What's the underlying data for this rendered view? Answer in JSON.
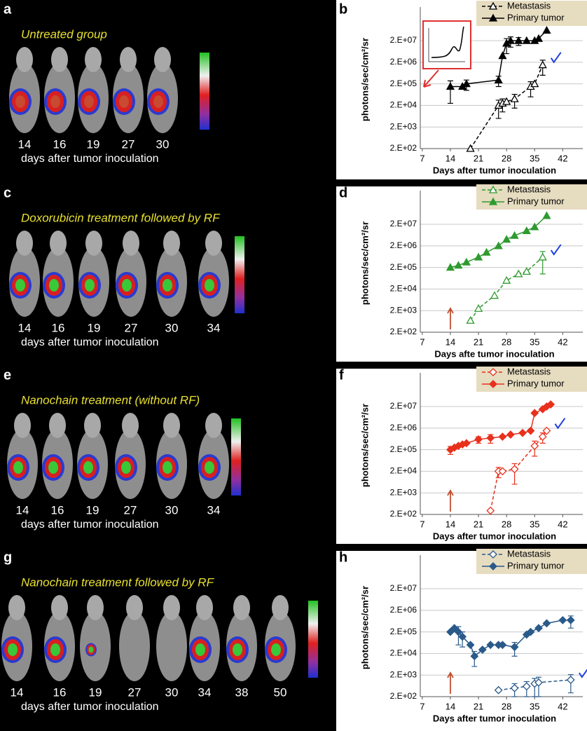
{
  "image_panels": [
    {
      "label": "a",
      "title": "Untreated group",
      "days": [
        14,
        16,
        19,
        27,
        30
      ],
      "caption": "days after tumor inoculation"
    },
    {
      "label": "c",
      "title": "Doxorubicin treatment followed by RF",
      "days": [
        14,
        16,
        19,
        27,
        30,
        34
      ],
      "caption": "days after tumor inoculation"
    },
    {
      "label": "e",
      "title": "Nanochain treatment (without RF)",
      "days": [
        14,
        16,
        19,
        27,
        30,
        34
      ],
      "caption": "days after tumor inoculation"
    },
    {
      "label": "g",
      "title": "Nanochain treatment followed by RF",
      "days": [
        14,
        16,
        19,
        27,
        30,
        34,
        38,
        50
      ],
      "caption": "days after tumor inoculation"
    }
  ],
  "chart_data": [
    {
      "type": "line",
      "label": "b",
      "xlabel": "Days after tumor inoculation",
      "ylabel": "photons/sec/cm²/sr",
      "xlim": [
        6.5,
        47
      ],
      "xticks": [
        7,
        14,
        21,
        28,
        35,
        42
      ],
      "log_y": true,
      "ylim": [
        200,
        500000000
      ],
      "yticks": [
        {
          "value": 200,
          "label": "2.E+02"
        },
        {
          "value": 2000,
          "label": "2.E+03"
        },
        {
          "value": 20000,
          "label": "2.E+04"
        },
        {
          "value": 200000,
          "label": "2.E+05"
        },
        {
          "value": 2000000,
          "label": "2.E+06"
        },
        {
          "value": 20000000,
          "label": "2.E+07"
        }
      ],
      "grid": true,
      "series": [
        {
          "name": "Metastasis",
          "color": "#000000",
          "marker": "triangle",
          "filled": false,
          "dashed": true,
          "x": [
            19,
            26,
            27,
            28,
            30,
            34,
            35,
            37
          ],
          "values": [
            200,
            20000,
            25000,
            30000,
            40000,
            150000,
            200000,
            1500000
          ],
          "errors": [
            null,
            15000,
            15000,
            null,
            25000,
            100000,
            null,
            1000000
          ]
        },
        {
          "name": "Primary tumor",
          "color": "#000000",
          "marker": "triangle",
          "filled": true,
          "dashed": false,
          "x": [
            14,
            17,
            18,
            26,
            27,
            28,
            29,
            31,
            33,
            35,
            36,
            38
          ],
          "values": [
            150000,
            150000,
            200000,
            300000,
            4000000,
            15000000,
            20000000,
            20000000,
            20000000,
            20000000,
            25000000,
            60000000
          ],
          "errors": [
            125000,
            null,
            100000,
            150000,
            null,
            10000000,
            10000000,
            8000000,
            null,
            null,
            null,
            null
          ]
        }
      ]
    },
    {
      "type": "line",
      "label": "d",
      "xlabel": "Days afte tumor inoculation",
      "ylabel": "photons/sec/cm²/sr",
      "xlim": [
        6.5,
        47
      ],
      "xticks": [
        7,
        14,
        21,
        28,
        35,
        42
      ],
      "log_y": true,
      "ylim": [
        200,
        500000000
      ],
      "yticks": [
        {
          "value": 200,
          "label": "2.E+02"
        },
        {
          "value": 2000,
          "label": "2.E+03"
        },
        {
          "value": 20000,
          "label": "2.E+04"
        },
        {
          "value": 200000,
          "label": "2.E+05"
        },
        {
          "value": 2000000,
          "label": "2.E+06"
        },
        {
          "value": 20000000,
          "label": "2.E+07"
        }
      ],
      "grid": true,
      "series": [
        {
          "name": "Metastasis",
          "color": "#2f9a2f",
          "marker": "triangle",
          "filled": false,
          "dashed": true,
          "x": [
            19,
            21,
            25,
            28,
            31,
            33,
            37
          ],
          "values": [
            700,
            2500,
            10000,
            50000,
            100000,
            130000,
            600000
          ],
          "errors": [
            null,
            null,
            null,
            null,
            null,
            null,
            500000
          ]
        },
        {
          "name": "Primary tumor",
          "color": "#2f9a2f",
          "marker": "triangle",
          "filled": true,
          "dashed": false,
          "x": [
            14,
            16,
            18,
            21,
            23,
            26,
            28,
            30,
            33,
            35,
            38
          ],
          "values": [
            200000,
            250000,
            350000,
            600000,
            1000000,
            2000000,
            4000000,
            6000000,
            10000000,
            15000000,
            50000000
          ]
        }
      ]
    },
    {
      "type": "line",
      "label": "f",
      "xlabel": "Days after tumor inoculation",
      "ylabel": "photons/sec/cm²/sr",
      "xlim": [
        6.5,
        47
      ],
      "xticks": [
        7,
        14,
        21,
        28,
        35,
        42
      ],
      "log_y": true,
      "ylim": [
        200,
        500000000
      ],
      "yticks": [
        {
          "value": 200,
          "label": "2.E+02"
        },
        {
          "value": 2000,
          "label": "2.E+03"
        },
        {
          "value": 20000,
          "label": "2.E+04"
        },
        {
          "value": 200000,
          "label": "2.E+05"
        },
        {
          "value": 2000000,
          "label": "2.E+06"
        },
        {
          "value": 20000000,
          "label": "2.E+07"
        }
      ],
      "grid": true,
      "series": [
        {
          "name": "Metastasis",
          "color": "#e8301c",
          "marker": "diamond",
          "filled": false,
          "dashed": true,
          "x": [
            24,
            26,
            27,
            30,
            35,
            37,
            38
          ],
          "values": [
            300,
            20000,
            20000,
            25000,
            300000,
            800000,
            1500000
          ],
          "errors": [
            null,
            10000,
            null,
            20000,
            200000,
            400000,
            null
          ]
        },
        {
          "name": "Primary tumor",
          "color": "#e8301c",
          "marker": "diamond",
          "filled": true,
          "dashed": false,
          "x": [
            14,
            15,
            16,
            17,
            18,
            21,
            24,
            27,
            29,
            32,
            34,
            35,
            37,
            38,
            39
          ],
          "values": [
            200000,
            250000,
            300000,
            350000,
            400000,
            600000,
            700000,
            800000,
            1000000,
            1200000,
            1500000,
            10000000,
            15000000,
            20000000,
            25000000
          ],
          "errors": [
            80000,
            null,
            null,
            null,
            null,
            200000,
            300000,
            null,
            null,
            null,
            null,
            null,
            null,
            null,
            null
          ]
        }
      ]
    },
    {
      "type": "line",
      "label": "h",
      "xlabel": "Days after tumor inoculation",
      "ylabel": "photons/sec/cm²/sr",
      "xlim": [
        6.5,
        47
      ],
      "xticks": [
        7,
        14,
        21,
        28,
        35,
        42
      ],
      "log_y": true,
      "ylim": [
        200,
        500000000
      ],
      "yticks": [
        {
          "value": 200,
          "label": "2.E+02"
        },
        {
          "value": 2000,
          "label": "2.E+03"
        },
        {
          "value": 20000,
          "label": "2.E+04"
        },
        {
          "value": 200000,
          "label": "2.E+05"
        },
        {
          "value": 2000000,
          "label": "2.E+06"
        },
        {
          "value": 20000000,
          "label": "2.E+07"
        }
      ],
      "grid": true,
      "series": [
        {
          "name": "Metastasis",
          "color": "#2a5a8a",
          "marker": "diamond",
          "filled": false,
          "dashed": true,
          "x": [
            26,
            30,
            33,
            35,
            36,
            44
          ],
          "values": [
            400,
            500,
            600,
            800,
            900,
            1200
          ],
          "errors": [
            null,
            300,
            400,
            600,
            700,
            900
          ]
        },
        {
          "name": "Primary tumor",
          "color": "#2a5a8a",
          "marker": "diamond",
          "filled": true,
          "dashed": false,
          "x": [
            14,
            15,
            16,
            17,
            19,
            20,
            22,
            24,
            26,
            27,
            30,
            33,
            34,
            36,
            38,
            42,
            44
          ],
          "values": [
            200000,
            300000,
            200000,
            120000,
            50000,
            15000,
            30000,
            50000,
            50000,
            50000,
            40000,
            150000,
            200000,
            300000,
            500000,
            700000,
            700000
          ],
          "errors": [
            null,
            null,
            150000,
            80000,
            null,
            10000,
            null,
            null,
            null,
            null,
            25000,
            null,
            null,
            null,
            null,
            null,
            400000
          ]
        }
      ]
    }
  ]
}
